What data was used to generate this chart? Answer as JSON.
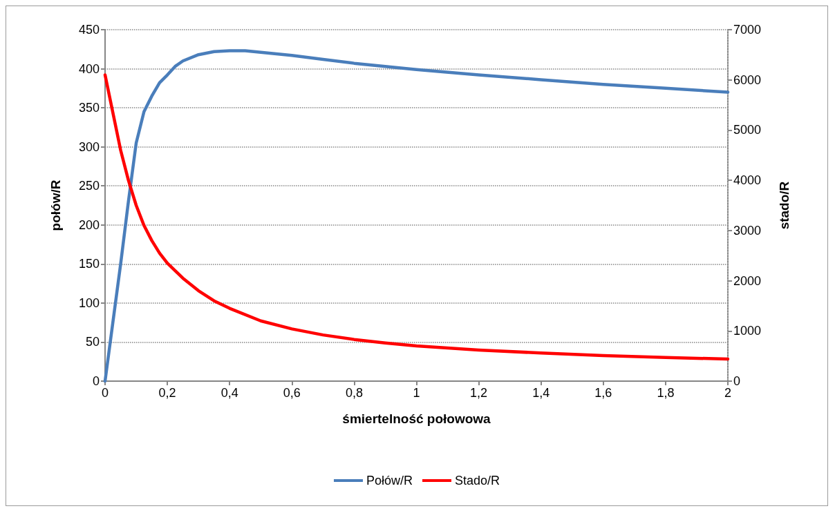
{
  "chart_data": {
    "type": "line",
    "xlabel": "śmiertelność połowowa",
    "ylabel": "połów/R",
    "y2label": "stado/R",
    "xlim": [
      0,
      2
    ],
    "xticks": [
      0,
      {
        "value": 0.2,
        "label": "0,2"
      },
      {
        "value": 0.4,
        "label": "0,4"
      },
      {
        "value": 0.6,
        "label": "0,6"
      },
      {
        "value": 0.8,
        "label": "0,8"
      },
      1,
      {
        "value": 1.2,
        "label": "1,2"
      },
      {
        "value": 1.4,
        "label": "1,4"
      },
      {
        "value": 1.6,
        "label": "1,6"
      },
      {
        "value": 1.8,
        "label": "1,8"
      },
      2
    ],
    "ylim": [
      0,
      450
    ],
    "yticks": [
      0,
      50,
      100,
      150,
      200,
      250,
      300,
      350,
      400,
      450
    ],
    "y2lim": [
      0,
      7000
    ],
    "y2ticks": [
      0,
      1000,
      2000,
      3000,
      4000,
      5000,
      6000,
      7000
    ],
    "grid": "y",
    "legend": "bottom",
    "marker": "none",
    "line_style": "solid",
    "series": [
      {
        "name": "Połów/R",
        "color": "#4a7ebb",
        "x": [
          0,
          0.025,
          0.05,
          0.075,
          0.1,
          0.125,
          0.15,
          0.175,
          0.2,
          0.225,
          0.25,
          0.3,
          0.35,
          0.4,
          0.45,
          0.5,
          0.6,
          0.7,
          0.8,
          0.9,
          1,
          1.2,
          1.4,
          1.6,
          1.8,
          2
        ],
        "values": [
          0,
          75,
          150,
          230,
          305,
          345,
          365,
          382,
          392,
          403,
          410,
          418,
          422,
          423,
          423,
          421,
          417,
          412,
          407,
          403,
          399,
          392,
          386,
          380,
          375,
          370
        ]
      },
      {
        "name": "Stado/R",
        "color": "#ff0000",
        "axis": "y2",
        "x": [
          0,
          0.025,
          0.05,
          0.075,
          0.1,
          0.125,
          0.15,
          0.175,
          0.2,
          0.25,
          0.3,
          0.35,
          0.4,
          0.5,
          0.6,
          0.7,
          0.8,
          0.9,
          1,
          1.2,
          1.4,
          1.6,
          1.8,
          2
        ],
        "values": [
          6100,
          5350,
          4600,
          4000,
          3500,
          3100,
          2800,
          2550,
          2350,
          2050,
          1800,
          1600,
          1450,
          1200,
          1040,
          920,
          830,
          760,
          700,
          620,
          560,
          510,
          470,
          440
        ]
      }
    ]
  }
}
